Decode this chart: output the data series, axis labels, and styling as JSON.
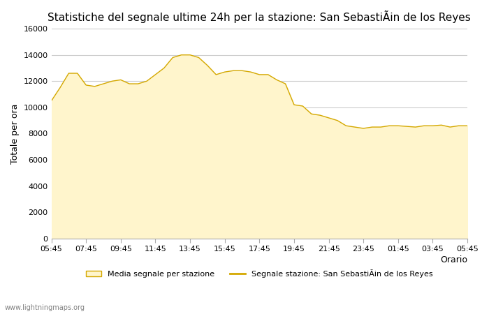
{
  "title": "Statistiche del segnale ultime 24h per la stazione: San SebastiÃin de los Reyes",
  "xlabel": "Orario",
  "ylabel": "Totale per ora",
  "watermark": "www.lightningmaps.org",
  "legend_area_label": "Media segnale per stazione",
  "legend_line_label": "Segnale stazione: San SebastiÃin de los Reyes",
  "fill_color": "#FFF5CC",
  "line_color": "#D4A800",
  "background_color": "#FFFFFF",
  "grid_color": "#CCCCCC",
  "ylim": [
    0,
    16000
  ],
  "yticks": [
    0,
    2000,
    4000,
    6000,
    8000,
    10000,
    12000,
    14000,
    16000
  ],
  "x_labels": [
    "05:45",
    "07:45",
    "09:45",
    "11:45",
    "13:45",
    "15:45",
    "17:45",
    "19:45",
    "21:45",
    "23:45",
    "01:45",
    "03:45",
    "05:45"
  ],
  "x_values": [
    0,
    2,
    4,
    6,
    8,
    10,
    12,
    14,
    16,
    18,
    20,
    22,
    24
  ],
  "y_values": [
    10500,
    11500,
    12600,
    12600,
    11700,
    11600,
    11800,
    12000,
    12100,
    11800,
    11800,
    12000,
    12500,
    13000,
    13800,
    14000,
    14000,
    13800,
    13200,
    12500,
    12700,
    12800,
    12800,
    12700,
    12500,
    12500,
    12100,
    11800,
    10200,
    10100,
    9500,
    9400,
    9200,
    9000,
    8600,
    8500,
    8400,
    8500,
    8500,
    8600,
    8600,
    8550,
    8500,
    8600,
    8600,
    8650,
    8500,
    8600,
    8600
  ]
}
